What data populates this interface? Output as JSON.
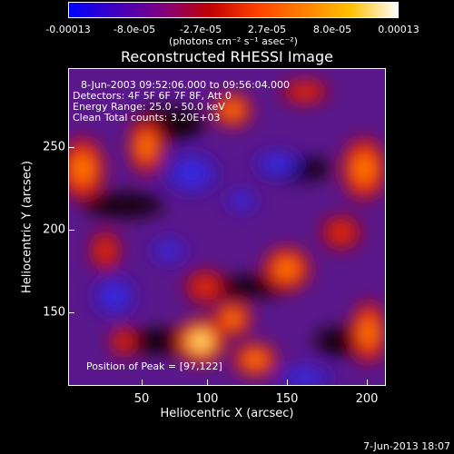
{
  "colorbar": {
    "labels": [
      "-0.00013",
      "-8.0e-05",
      "-2.7e-05",
      "2.7e-05",
      "8.0e-05",
      "0.00013"
    ],
    "units": "(photons cm⁻² s⁻¹ asec⁻²)",
    "colors": [
      "#0000ff",
      "#4000c0",
      "#800080",
      "#c00000",
      "#ff4000",
      "#ff8000",
      "#ffc000",
      "#ffffff"
    ]
  },
  "title": "Reconstructed RHESSI Image",
  "overlay": {
    "line1": "8-Jun-2003 09:52:06.000 to 09:56:04.000",
    "line2": "Detectors: 4F 5F 6F 7F 8F, Att 0",
    "line3": "Energy Range: 25.0 - 50.0 keV",
    "line4": "Clean     Total counts: 3.20E+03"
  },
  "peak": "Position of Peak = [97,122]",
  "axes": {
    "xlabel": "Heliocentric X (arcsec)",
    "ylabel": "Heliocentric Y (arcsec)",
    "xticks": [
      "50",
      "100",
      "150",
      "200"
    ],
    "yticks": [
      "250",
      "200",
      "150"
    ]
  },
  "timestamp": "7-Jun-2013 18:07"
}
